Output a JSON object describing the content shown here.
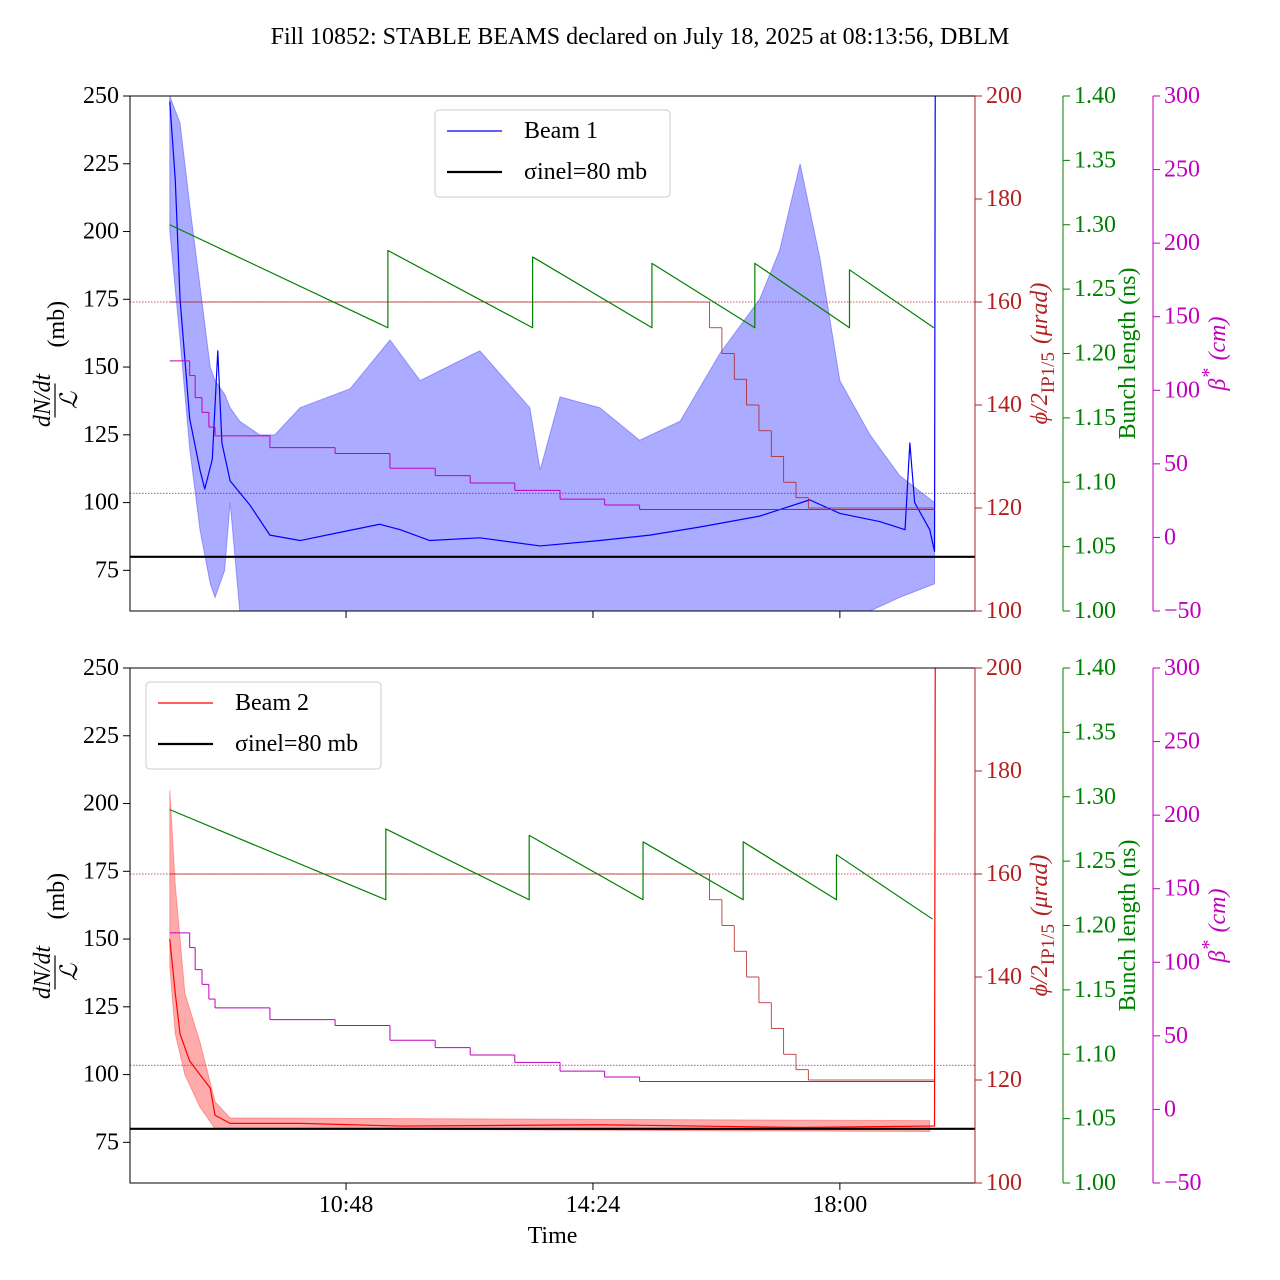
{
  "title": "Fill 10852: STABLE BEAMS declared on July 18, 2025 at 08:13:56, DBLM",
  "chart_data": [
    {
      "type": "line",
      "legend": "upper center",
      "xlim": [
        7.65,
        19.97
      ],
      "xticks": [
        10.8,
        14.4,
        18
      ],
      "ylim": [
        60,
        250
      ],
      "yticks": [
        75,
        100,
        125,
        150,
        175,
        200,
        225,
        250
      ],
      "y2lim": [
        100,
        200
      ],
      "y2ticks": [
        100,
        120,
        140,
        160,
        180,
        200
      ],
      "y3lim": [
        1,
        1.4
      ],
      "y3ticks": [
        {
          "value": 1,
          "label": "1.00"
        },
        1.05,
        {
          "value": 1.1,
          "label": "1.10"
        },
        1.15,
        {
          "value": 1.2,
          "label": "1.20"
        },
        1.25,
        {
          "value": 1.3,
          "label": "1.30"
        },
        1.35,
        {
          "value": 1.4,
          "label": "1.40"
        }
      ],
      "y4lim": [
        -50,
        300
      ],
      "y4ticks": [
        {
          "value": -50,
          "label": "−50"
        },
        0,
        50,
        100,
        150,
        200,
        250,
        300
      ],
      "ylabel": {
        "numerator": "dN/dt",
        "denominator": "ℒ",
        "unit": "(mb)"
      },
      "y2label": {
        "symbol": "ϕ/2",
        "subscript": "IP1/5",
        "unit": "(μrad)"
      },
      "y3label": "Bunch length (ns)",
      "y4label": {
        "symbol": "β",
        "superscript": "*",
        "unit": "(cm)"
      },
      "axis_colors": {
        "y": "#000000",
        "y2": "#b22222",
        "y3": "#008000",
        "y4": "#bf00bf"
      },
      "reference_lines": [
        {
          "axis": "y2",
          "value": 160,
          "color": "#b22222"
        },
        {
          "axis": "y4",
          "value": 30,
          "color": "#bf00bf"
        }
      ],
      "series": [
        {
          "name": "Beam 1",
          "color": "#0000ff",
          "linewidth": 1.2,
          "axis": "y",
          "x": [
            8.23,
            8.31,
            8.38,
            8.52,
            8.67,
            8.74,
            8.85,
            8.93,
            8.99,
            9.11,
            9.4,
            9.69,
            10.13,
            10.71,
            11.29,
            11.59,
            12.02,
            12.75,
            13.63,
            14.5,
            15.23,
            15.96,
            16.83,
            17.56,
            18.0,
            18.58,
            18.95,
            19.02,
            19.09,
            19.31,
            19.38,
            19.39
          ],
          "values": [
            248,
            219,
            175,
            131,
            112,
            105,
            116,
            156,
            122,
            108,
            99,
            88,
            86,
            89,
            92,
            90,
            86,
            87,
            84,
            86,
            88,
            91,
            95,
            101,
            96,
            93,
            90,
            122,
            100,
            90,
            82,
            250
          ],
          "band_x": [
            8.23,
            8.38,
            8.52,
            8.67,
            8.82,
            8.89,
            9.03,
            9.11,
            9.25,
            9.54,
            9.76,
            10.13,
            10.86,
            11.44,
            11.88,
            12.75,
            13.48,
            13.63,
            13.92,
            14.5,
            15.08,
            15.67,
            16.25,
            16.83,
            17.12,
            17.42,
            17.71,
            18.0,
            18.44,
            18.87,
            19.38
          ],
          "band_upper": [
            250,
            240,
            210,
            180,
            150,
            145,
            140,
            135,
            130,
            125,
            125,
            135,
            142,
            160,
            145,
            156,
            135,
            112,
            139,
            135,
            123,
            130,
            155,
            175,
            193,
            225,
            190,
            145,
            125,
            110,
            100
          ],
          "band_lower": [
            200,
            160,
            120,
            90,
            70,
            65,
            75,
            100,
            60,
            50,
            45,
            40,
            40,
            40,
            40,
            40,
            40,
            40,
            40,
            40,
            40,
            40,
            40,
            40,
            40,
            40,
            45,
            50,
            60,
            65,
            70
          ]
        },
        {
          "name": "σinel=80 mb",
          "color": "#000000",
          "linewidth": 2.2,
          "axis": "y",
          "hline": true,
          "values": [
            80
          ]
        },
        {
          "color": "#b22222",
          "linewidth": 0.8,
          "axis": "y2",
          "drawstyle": "steps-post",
          "x": [
            8.23,
            16.1,
            16.28,
            16.46,
            16.64,
            16.82,
            17.0,
            17.18,
            17.36,
            17.54,
            19.38
          ],
          "values": [
            160,
            155,
            150,
            145,
            140,
            135,
            130,
            125,
            122,
            120,
            120
          ]
        },
        {
          "color": "#008000",
          "linewidth": 1.2,
          "axis": "y3",
          "x": [
            8.23,
            11.41,
            11.41,
            13.52,
            13.52,
            15.26,
            15.26,
            16.76,
            16.76,
            18.14,
            18.14,
            19.37
          ],
          "values": [
            1.3,
            1.22,
            1.28,
            1.22,
            1.275,
            1.22,
            1.27,
            1.22,
            1.27,
            1.22,
            1.265,
            1.22
          ]
        },
        {
          "color": "#bf00bf",
          "linewidth": 1,
          "axis": "y4",
          "drawstyle": "steps-post",
          "x": [
            8.23,
            8.52,
            8.6,
            8.7,
            8.8,
            8.89,
            9.69,
            10.64,
            11.44,
            12.1,
            12.61,
            13.26,
            13.92,
            14.57,
            15.08,
            19.38
          ],
          "values": [
            120,
            110,
            95,
            85,
            75,
            69,
            61,
            57,
            47,
            42,
            37,
            32,
            26,
            22,
            19,
            19
          ]
        }
      ]
    },
    {
      "type": "line",
      "legend": "upper left",
      "xlim": [
        7.65,
        19.97
      ],
      "xticks": [
        {
          "value": 10.8,
          "label": "10:48"
        },
        {
          "value": 14.4,
          "label": "14:24"
        },
        {
          "value": 18,
          "label": "18:00"
        }
      ],
      "xlabel": "Time",
      "ylim": [
        60,
        250
      ],
      "yticks": [
        75,
        100,
        125,
        150,
        175,
        200,
        225,
        250
      ],
      "y2lim": [
        100,
        200
      ],
      "y2ticks": [
        100,
        120,
        140,
        160,
        180,
        200
      ],
      "y3lim": [
        1,
        1.4
      ],
      "y3ticks": [
        {
          "value": 1,
          "label": "1.00"
        },
        1.05,
        {
          "value": 1.1,
          "label": "1.10"
        },
        1.15,
        {
          "value": 1.2,
          "label": "1.20"
        },
        1.25,
        {
          "value": 1.3,
          "label": "1.30"
        },
        1.35,
        {
          "value": 1.4,
          "label": "1.40"
        }
      ],
      "y4lim": [
        -50,
        300
      ],
      "y4ticks": [
        {
          "value": -50,
          "label": "−50"
        },
        0,
        50,
        100,
        150,
        200,
        250,
        300
      ],
      "ylabel": {
        "numerator": "dN/dt",
        "denominator": "ℒ",
        "unit": "(mb)"
      },
      "y2label": {
        "symbol": "ϕ/2",
        "subscript": "IP1/5",
        "unit": "(μrad)"
      },
      "y3label": "Bunch length (ns)",
      "y4label": {
        "symbol": "β",
        "superscript": "*",
        "unit": "(cm)"
      },
      "axis_colors": {
        "y": "#000000",
        "y2": "#b22222",
        "y3": "#008000",
        "y4": "#bf00bf"
      },
      "reference_lines": [
        {
          "axis": "y2",
          "value": 160,
          "color": "#b22222"
        },
        {
          "axis": "y4",
          "value": 30,
          "color": "#bf00bf"
        }
      ],
      "series": [
        {
          "name": "Beam 2",
          "color": "#ff0000",
          "linewidth": 1.2,
          "axis": "y",
          "x": [
            8.23,
            8.31,
            8.38,
            8.52,
            8.67,
            8.82,
            8.89,
            9.11,
            10.13,
            11.59,
            14.5,
            17.42,
            19.31,
            19.38,
            19.39
          ],
          "values": [
            150,
            130,
            115,
            105,
            100,
            95,
            85,
            82,
            82,
            81,
            81.5,
            80.5,
            81,
            81,
            250
          ],
          "band_x": [
            8.23,
            8.31,
            8.45,
            8.67,
            8.89,
            9.11,
            19.31
          ],
          "band_upper": [
            205,
            170,
            130,
            112,
            90,
            84,
            83
          ],
          "band_lower": [
            140,
            115,
            100,
            88,
            80,
            80,
            79
          ]
        },
        {
          "name": "σinel=80 mb",
          "color": "#000000",
          "linewidth": 2.2,
          "axis": "y",
          "hline": true,
          "values": [
            80
          ]
        },
        {
          "color": "#b22222",
          "linewidth": 0.8,
          "axis": "y2",
          "drawstyle": "steps-post",
          "x": [
            8.23,
            16.1,
            16.28,
            16.46,
            16.64,
            16.82,
            17.0,
            17.18,
            17.36,
            17.54,
            19.38
          ],
          "values": [
            160,
            155,
            150,
            145,
            140,
            135,
            130,
            125,
            122,
            120,
            120
          ]
        },
        {
          "color": "#008000",
          "linewidth": 1.2,
          "axis": "y3",
          "x": [
            8.23,
            11.38,
            11.38,
            13.47,
            13.47,
            15.13,
            15.13,
            16.59,
            16.59,
            17.95,
            17.95,
            19.35
          ],
          "values": [
            1.29,
            1.22,
            1.275,
            1.22,
            1.27,
            1.22,
            1.265,
            1.22,
            1.265,
            1.22,
            1.255,
            1.205
          ]
        },
        {
          "color": "#bf00bf",
          "linewidth": 1,
          "axis": "y4",
          "drawstyle": "steps-post",
          "x": [
            8.23,
            8.52,
            8.6,
            8.7,
            8.8,
            8.89,
            9.69,
            10.64,
            11.44,
            12.1,
            12.61,
            13.26,
            13.92,
            14.57,
            15.08,
            19.38
          ],
          "values": [
            120,
            110,
            95,
            85,
            75,
            69,
            61,
            57,
            47,
            42,
            37,
            32,
            26,
            22,
            19,
            19
          ]
        }
      ]
    }
  ]
}
